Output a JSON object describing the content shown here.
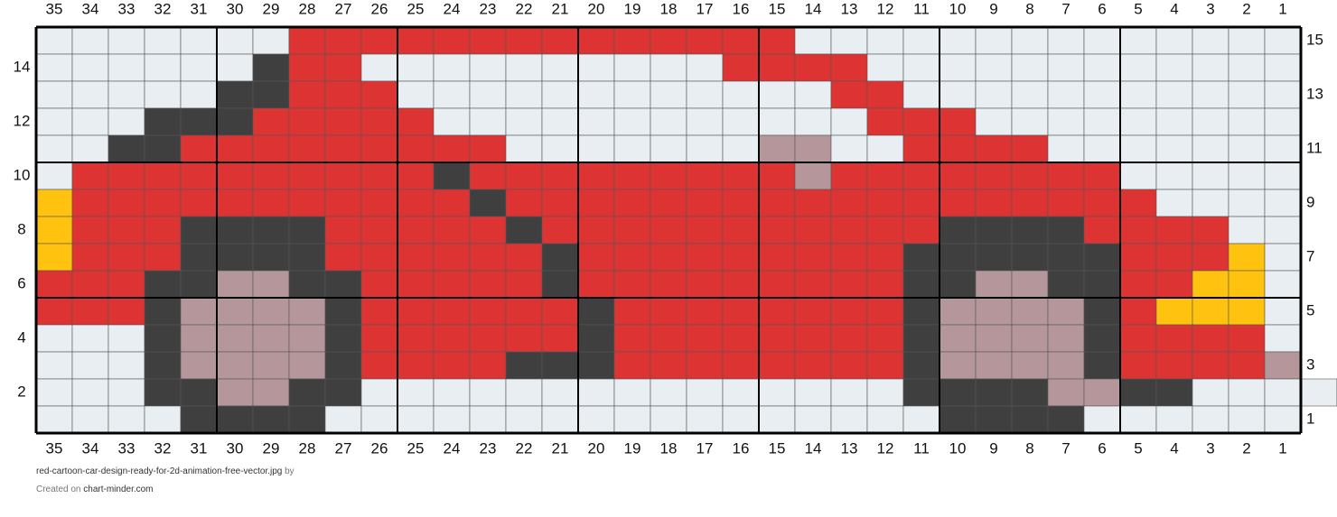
{
  "grid": {
    "columns": [
      35,
      34,
      33,
      32,
      31,
      30,
      29,
      28,
      27,
      26,
      25,
      24,
      23,
      22,
      21,
      20,
      19,
      18,
      17,
      16,
      15,
      14,
      13,
      12,
      11,
      10,
      9,
      8,
      7,
      6,
      5,
      4,
      3,
      2,
      1
    ],
    "rows_left": [
      14,
      12,
      10,
      8,
      6,
      4,
      2
    ],
    "rows_right": [
      15,
      13,
      11,
      9,
      7,
      5,
      3,
      1
    ]
  },
  "footer": {
    "file": "red-cartoon-car-design-ready-for-2d-animation-free-vector.jpg",
    "by": "by",
    "created": "Created on",
    "site": "chart-minder.com"
  }
}
